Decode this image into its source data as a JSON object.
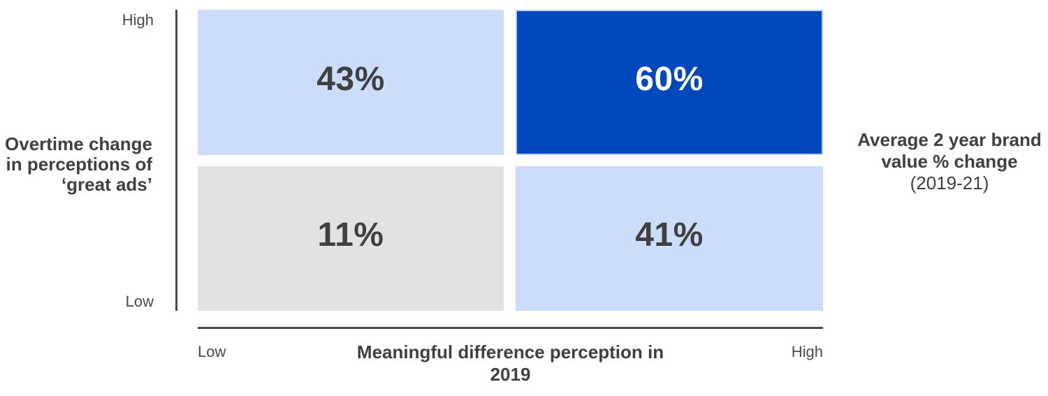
{
  "chart_data": {
    "type": "heatmap",
    "title": "",
    "unit": "%",
    "x_axis": {
      "label": "Meaningful difference perception in 2019",
      "ticks": [
        "Low",
        "High"
      ]
    },
    "y_axis": {
      "label": "Overtime change in perceptions of ‘great ads’",
      "ticks": [
        "Low",
        "High"
      ]
    },
    "metric_label": "Average 2 year brand value % change (2019-21)",
    "rows": [
      {
        "y": "High",
        "cells": [
          {
            "x": "Low",
            "value": 43
          },
          {
            "x": "High",
            "value": 60
          }
        ]
      },
      {
        "y": "Low",
        "cells": [
          {
            "x": "Low",
            "value": 11
          },
          {
            "x": "High",
            "value": 41
          }
        ]
      }
    ],
    "highlight_cell": {
      "x": "High",
      "y": "High",
      "value": 60
    },
    "legend_position": "none",
    "grid": false
  },
  "y_axis": {
    "title_lines": [
      "Overtime change",
      "in perceptions of",
      "‘great ads’"
    ],
    "ticks": [
      "Low",
      "High"
    ]
  },
  "x_axis": {
    "title_lines": [
      "Meaningful difference perception in",
      "2019"
    ],
    "ticks": [
      "Low",
      "High"
    ]
  },
  "right_label": {
    "lines": [
      "Average 2 year brand",
      "value % change",
      "(2019-21)"
    ]
  },
  "quadrants": {
    "top_left": {
      "value": "43%",
      "bg": "#CBDDFB",
      "text": "#404040"
    },
    "top_right": {
      "value": "60%",
      "bg": "#0048BC",
      "text": "#FFFFFF"
    },
    "bottom_left": {
      "value": "11%",
      "bg": "#E2E2E1",
      "text": "#404040"
    },
    "bottom_right": {
      "value": "41%",
      "bg": "#CBDDFB",
      "text": "#404040"
    }
  },
  "colors": {
    "light_blue": "#CBDDFB",
    "dark_blue": "#0048BC",
    "gray": "#E2E2E1",
    "text_dark": "#404040",
    "tick_text": "#4A4A4A",
    "axis_line": "#4A4A4A",
    "background": "#FFFFFF"
  }
}
